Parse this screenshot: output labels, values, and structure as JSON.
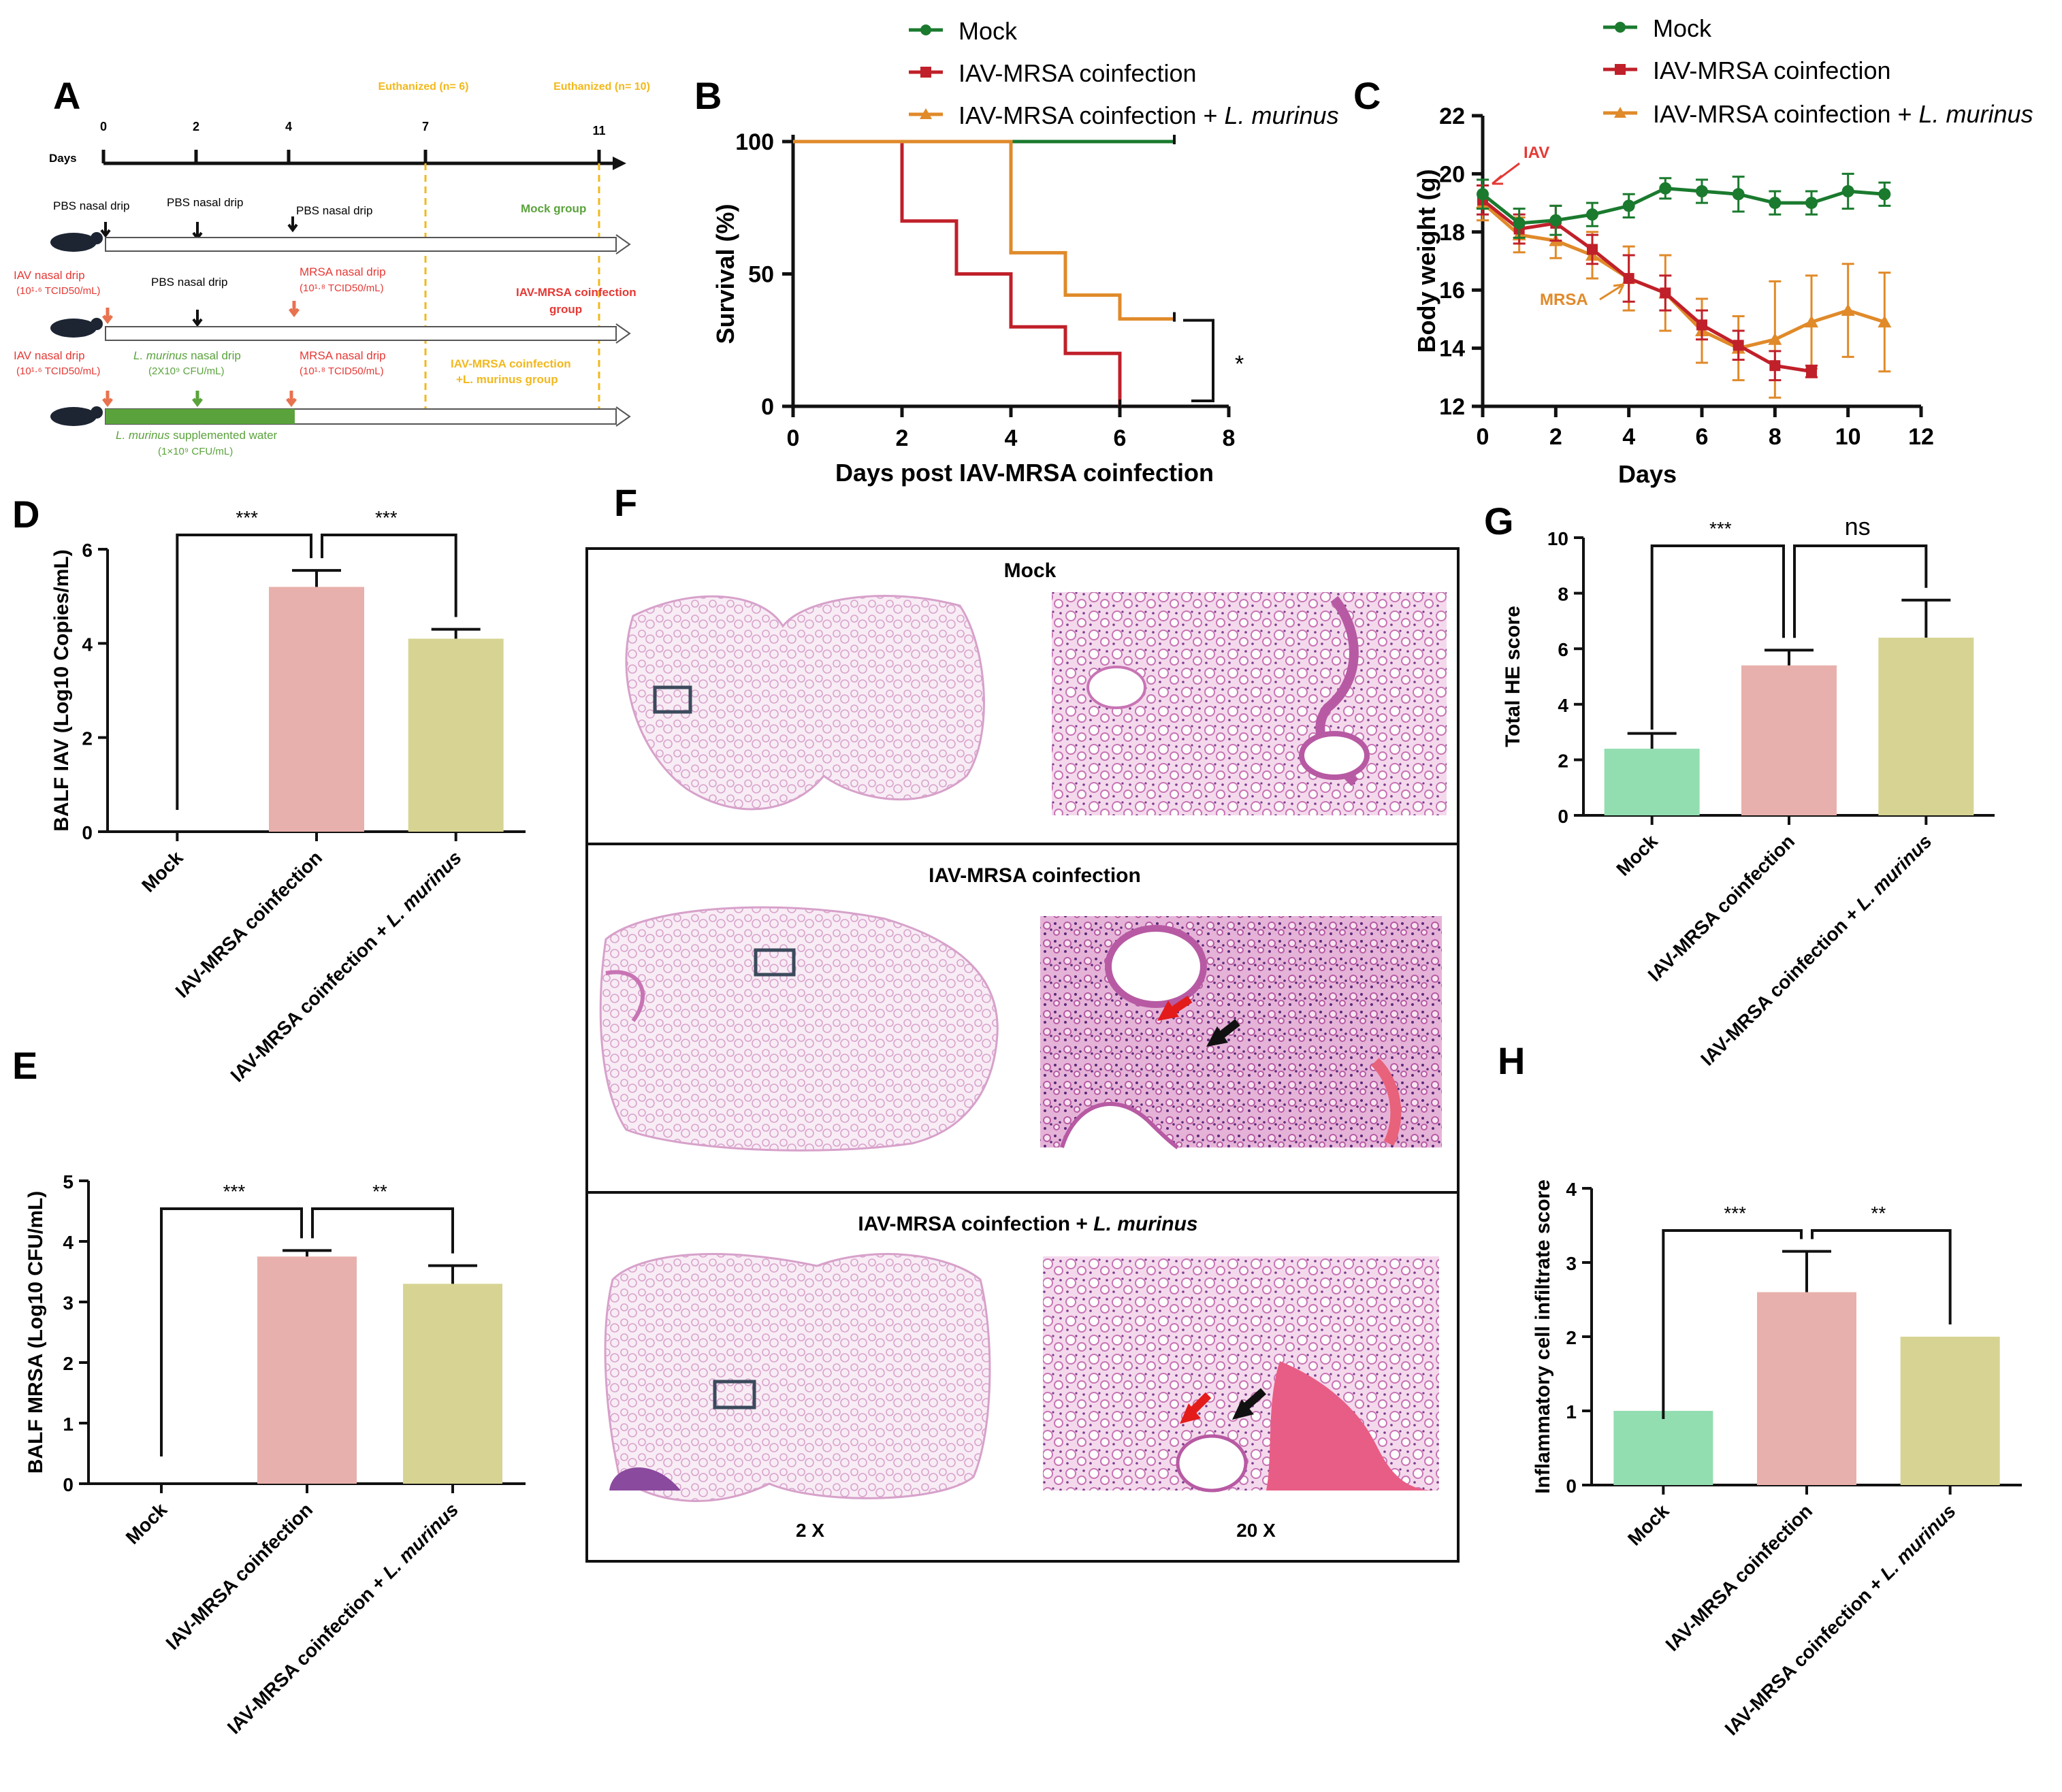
{
  "colors": {
    "mock": "#1a7a2e",
    "coinf": "#c0202a",
    "lmur": "#e08a2a",
    "bar_mock": "#93deb1",
    "bar_coinf": "#e8b0ac",
    "bar_lmur": "#d7d493",
    "timeline_orange": "#f2b81c",
    "timeline_red": "#e53935",
    "timeline_green": "#5aa33c",
    "he_pink": "#e2a3d4",
    "he_bg": "#f7e6f2"
  },
  "panelA": {
    "label": "A",
    "days_label": "Days",
    "ticks": [
      "0",
      "2",
      "4",
      "7",
      "11"
    ],
    "euth1": "Euthanized (n= 6)",
    "euth2": "Euthanized (n= 10)",
    "mock_row": {
      "pbs1": "PBS nasal drip",
      "pbs2": "PBS nasal drip",
      "pbs3": "PBS nasal drip",
      "group": "Mock group"
    },
    "coinf_row": {
      "iav": "IAV nasal drip",
      "iav_dose": "(10¹·⁶ TCID50/mL)",
      "pbs": "PBS nasal drip",
      "mrsa": "MRSA nasal drip",
      "mrsa_dose": "(10¹·⁸ TCID50/mL)",
      "group1": "IAV-MRSA coinfection",
      "group2": "group"
    },
    "lmur_row": {
      "iav": "IAV nasal drip",
      "iav_dose": "(10¹·⁶ TCID50/mL)",
      "lm_italic": "L. murinus",
      "lm_rest": " nasal drip",
      "lm_dose": "(2X10⁹ CFU/mL)",
      "mrsa": "MRSA nasal drip",
      "mrsa_dose": "(10¹·⁸ TCID50/mL)",
      "group1": "IAV-MRSA coinfection",
      "group2": "+L. murinus  group",
      "water_italic": "L. murinus",
      "water_rest": " supplemented water",
      "water_dose": "(1×10⁹ CFU/mL)"
    }
  },
  "legend": {
    "mock": "Mock",
    "coinf": "IAV-MRSA coinfection",
    "lmur_prefix": "IAV-MRSA coinfection + ",
    "lmur_italic": "L. murinus"
  },
  "chart_data": [
    {
      "id": "B",
      "type": "line",
      "step": true,
      "title": "",
      "xlabel": "Days post IAV-MRSA coinfection",
      "ylabel": "Survival (%)",
      "xlim": [
        0,
        8
      ],
      "ylim": [
        0,
        100
      ],
      "xticks": [
        "0",
        "2",
        "4",
        "6",
        "8"
      ],
      "yticks": [
        "0",
        "50",
        "100"
      ],
      "series": [
        {
          "name": "Mock",
          "x": [
            0,
            7
          ],
          "y": [
            100,
            100
          ]
        },
        {
          "name": "IAV-MRSA coinfection",
          "x": [
            0,
            2,
            3,
            4,
            5,
            6
          ],
          "y": [
            100,
            70,
            50,
            30,
            20,
            0
          ]
        },
        {
          "name": "IAV-MRSA coinfection + L. murinus",
          "x": [
            0,
            4,
            5,
            6,
            7
          ],
          "y": [
            100,
            58,
            42,
            33,
            33
          ]
        }
      ],
      "annotation": "*"
    },
    {
      "id": "C",
      "type": "line",
      "xlabel": "Days",
      "ylabel": "Body weight (g)",
      "xlim": [
        0,
        12
      ],
      "ylim": [
        12,
        22
      ],
      "xticks": [
        "0",
        "2",
        "4",
        "6",
        "8",
        "10",
        "12"
      ],
      "yticks": [
        "12",
        "14",
        "16",
        "18",
        "20",
        "22"
      ],
      "series": [
        {
          "name": "Mock",
          "x": [
            0,
            1,
            2,
            3,
            4,
            5,
            6,
            7,
            8,
            9,
            10,
            11
          ],
          "y": [
            19.3,
            18.3,
            18.4,
            18.6,
            18.9,
            19.5,
            19.4,
            19.3,
            19.0,
            19.0,
            19.4,
            19.3
          ],
          "err": [
            0.5,
            0.5,
            0.5,
            0.4,
            0.4,
            0.35,
            0.4,
            0.6,
            0.4,
            0.4,
            0.6,
            0.4
          ]
        },
        {
          "name": "IAV-MRSA coinfection",
          "x": [
            0,
            1,
            2,
            3,
            4,
            5,
            6,
            7,
            8,
            9
          ],
          "y": [
            19.1,
            18.1,
            18.3,
            17.4,
            16.4,
            15.9,
            14.8,
            14.1,
            13.4,
            13.2
          ],
          "err": [
            0.5,
            0.5,
            0.6,
            0.5,
            0.8,
            0.6,
            0.5,
            0.5,
            0.5,
            0.2
          ]
        },
        {
          "name": "IAV-MRSA coinfection + L. murinus",
          "x": [
            0,
            1,
            2,
            3,
            4,
            5,
            6,
            7,
            8,
            9,
            10,
            11
          ],
          "y": [
            19.0,
            17.9,
            17.7,
            17.2,
            16.4,
            15.9,
            14.6,
            14.0,
            14.3,
            14.9,
            15.3,
            14.9
          ],
          "err": [
            0.6,
            0.6,
            0.6,
            0.8,
            1.1,
            1.3,
            1.1,
            1.1,
            2.0,
            1.6,
            1.6,
            1.7
          ]
        }
      ],
      "annotations": [
        "IAV",
        "MRSA"
      ]
    },
    {
      "id": "D",
      "type": "bar",
      "ylabel": "BALF IAV (Log10 Copies/mL)",
      "ylim": [
        0,
        6
      ],
      "yticks": [
        "0",
        "2",
        "4",
        "6"
      ],
      "categories": [
        "Mock",
        "IAV-MRSA coinfection",
        "IAV-MRSA coinfection + L. murinus"
      ],
      "values": [
        0,
        5.2,
        4.1
      ],
      "err": [
        0,
        0.35,
        0.2
      ],
      "significance": [
        "***",
        "***"
      ]
    },
    {
      "id": "E",
      "type": "bar",
      "ylabel": "BALF MRSA (Log10 CFU/mL)",
      "ylim": [
        0,
        5
      ],
      "yticks": [
        "0",
        "1",
        "2",
        "3",
        "4",
        "5"
      ],
      "categories": [
        "Mock",
        "IAV-MRSA coinfection",
        "IAV-MRSA coinfection + L. murinus"
      ],
      "values": [
        0,
        3.75,
        3.3
      ],
      "err": [
        0,
        0.1,
        0.3
      ],
      "significance": [
        "***",
        "**"
      ]
    },
    {
      "id": "G",
      "type": "bar",
      "ylabel": "Total HE score",
      "ylim": [
        0,
        10
      ],
      "yticks": [
        "0",
        "2",
        "4",
        "6",
        "8",
        "10"
      ],
      "categories": [
        "Mock",
        "IAV-MRSA coinfection",
        "IAV-MRSA coinfection + L. murinus"
      ],
      "values": [
        2.4,
        5.4,
        6.4
      ],
      "err": [
        0.55,
        0.55,
        1.35
      ],
      "significance": [
        "***",
        "ns"
      ]
    },
    {
      "id": "H",
      "type": "bar",
      "ylabel": "Inflammatory cell infiltrate score",
      "ylim": [
        0,
        4
      ],
      "yticks": [
        "0",
        "1",
        "2",
        "3",
        "4"
      ],
      "categories": [
        "Mock",
        "IAV-MRSA coinfection",
        "IAV-MRSA coinfection + L. murinus"
      ],
      "values": [
        1.0,
        2.6,
        2.0
      ],
      "err": [
        0,
        0.55,
        0
      ],
      "significance": [
        "***",
        "**"
      ]
    }
  ],
  "panelF": {
    "label": "F",
    "row1": "Mock",
    "row2": "IAV-MRSA coinfection",
    "row3_prefix": "IAV-MRSA coinfection + ",
    "row3_italic": "L. murinus",
    "mag_low": "2 X",
    "mag_high": "20 X"
  }
}
